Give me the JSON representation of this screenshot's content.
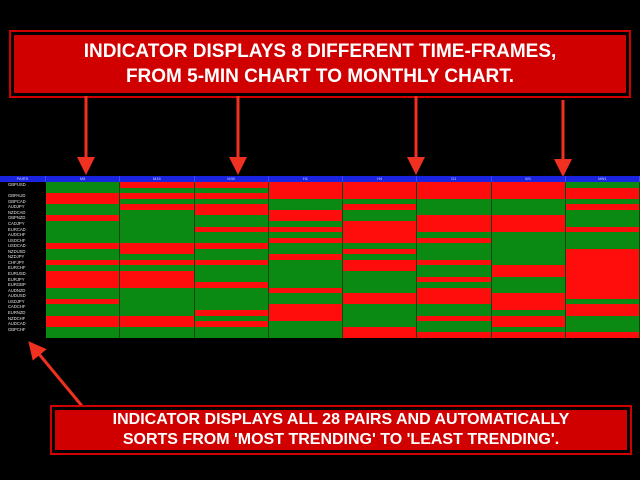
{
  "top_banner": {
    "line1": "INDICATOR DISPLAYS 8 DIFFERENT TIME-FRAMES,",
    "line2": "FROM 5-MIN CHART TO MONTHLY CHART."
  },
  "bottom_banner": {
    "line1": "INDICATOR DISPLAYS ALL 28 PAIRS AND AUTOMATICALLY",
    "line2_a": "SORTS FROM ",
    "line2_b": "'MOST TRENDING'",
    "line2_c": " TO ",
    "line2_d": "'LEAST TRENDING'",
    "line2_e": "."
  },
  "table": {
    "header_first": "PAIRS",
    "timeframes": [
      "M5",
      "M15",
      "M30",
      "H1",
      "H4",
      "D1",
      "W1",
      "MN1"
    ],
    "pairs": [
      "GBPUSD",
      "",
      "GBPAUD",
      "GBPCAD",
      "AUDJPY",
      "NZDCAD",
      "GBPNZD",
      "CADJPY",
      "EURCAD",
      "AUDCHF",
      "USDCHF",
      "USDCAD",
      "NZDUSD",
      "NZDJPY",
      "CHFJPY",
      "EURCHF",
      "EURUSD",
      "EURJPY",
      "EURGBP",
      "AUDNZD",
      "AUDUSD",
      "USDJPY",
      "CADCHF",
      "EURNZD",
      "NZDCHF",
      "AUDCAD",
      "GBPCHF",
      ""
    ],
    "states": [
      [
        "up",
        "dn",
        "dn",
        "dn",
        "dn",
        "dn",
        "dn",
        "up"
      ],
      [
        "up",
        "up",
        "up",
        "dn",
        "dn",
        "dn",
        "dn",
        "dn"
      ],
      [
        "dn",
        "dn",
        "dn",
        "dn",
        "dn",
        "dn",
        "dn",
        "dn"
      ],
      [
        "dn",
        "up",
        "up",
        "up",
        "up",
        "up",
        "up",
        "up"
      ],
      [
        "up",
        "dn",
        "dn",
        "up",
        "dn",
        "up",
        "up",
        "dn"
      ],
      [
        "up",
        "up",
        "dn",
        "dn",
        "up",
        "up",
        "up",
        "up"
      ],
      [
        "dn",
        "up",
        "up",
        "dn",
        "up",
        "dn",
        "dn",
        "up"
      ],
      [
        "up",
        "up",
        "up",
        "up",
        "dn",
        "dn",
        "dn",
        "up"
      ],
      [
        "up",
        "up",
        "dn",
        "dn",
        "dn",
        "dn",
        "dn",
        "dn"
      ],
      [
        "up",
        "up",
        "up",
        "up",
        "dn",
        "up",
        "up",
        "up"
      ],
      [
        "up",
        "up",
        "up",
        "dn",
        "dn",
        "dn",
        "up",
        "up"
      ],
      [
        "dn",
        "dn",
        "dn",
        "up",
        "up",
        "up",
        "up",
        "up"
      ],
      [
        "up",
        "dn",
        "up",
        "up",
        "dn",
        "up",
        "up",
        "dn"
      ],
      [
        "up",
        "up",
        "up",
        "dn",
        "up",
        "up",
        "up",
        "dn"
      ],
      [
        "dn",
        "dn",
        "dn",
        "up",
        "dn",
        "dn",
        "up",
        "dn"
      ],
      [
        "up",
        "up",
        "up",
        "up",
        "dn",
        "up",
        "dn",
        "dn"
      ],
      [
        "dn",
        "dn",
        "up",
        "up",
        "up",
        "up",
        "dn",
        "dn"
      ],
      [
        "dn",
        "dn",
        "up",
        "up",
        "up",
        "dn",
        "up",
        "dn"
      ],
      [
        "dn",
        "dn",
        "dn",
        "up",
        "up",
        "up",
        "up",
        "dn"
      ],
      [
        "up",
        "up",
        "up",
        "dn",
        "up",
        "dn",
        "up",
        "dn"
      ],
      [
        "up",
        "up",
        "up",
        "up",
        "dn",
        "dn",
        "dn",
        "dn"
      ],
      [
        "dn",
        "up",
        "up",
        "up",
        "dn",
        "dn",
        "dn",
        "up"
      ],
      [
        "up",
        "up",
        "up",
        "dn",
        "up",
        "up",
        "dn",
        "dn"
      ],
      [
        "up",
        "up",
        "dn",
        "dn",
        "up",
        "up",
        "up",
        "dn"
      ],
      [
        "dn",
        "dn",
        "up",
        "dn",
        "up",
        "dn",
        "dn",
        "up"
      ],
      [
        "dn",
        "dn",
        "dn",
        "up",
        "up",
        "up",
        "dn",
        "up"
      ],
      [
        "up",
        "up",
        "up",
        "up",
        "dn",
        "up",
        "up",
        "up"
      ],
      [
        "up",
        "up",
        "up",
        "up",
        "dn",
        "dn",
        "dn",
        "dn"
      ]
    ]
  }
}
